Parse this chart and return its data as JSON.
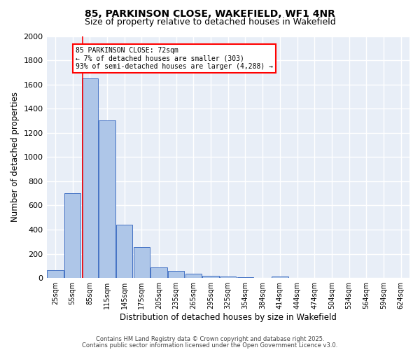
{
  "title1": "85, PARKINSON CLOSE, WAKEFIELD, WF1 4NR",
  "title2": "Size of property relative to detached houses in Wakefield",
  "xlabel": "Distribution of detached houses by size in Wakefield",
  "ylabel": "Number of detached properties",
  "bar_labels": [
    "25sqm",
    "55sqm",
    "85sqm",
    "115sqm",
    "145sqm",
    "175sqm",
    "205sqm",
    "235sqm",
    "265sqm",
    "295sqm",
    "325sqm",
    "354sqm",
    "384sqm",
    "414sqm",
    "444sqm",
    "474sqm",
    "504sqm",
    "534sqm",
    "564sqm",
    "594sqm",
    "624sqm"
  ],
  "bar_values": [
    65,
    700,
    1650,
    1300,
    440,
    255,
    90,
    57,
    35,
    20,
    10,
    5,
    0,
    15,
    3,
    0,
    0,
    0,
    0,
    0,
    3
  ],
  "bar_color": "#aec6e8",
  "bar_edge_color": "#4472c4",
  "background_color": "#e8eef7",
  "grid_color": "#ffffff",
  "ylim": [
    0,
    2000
  ],
  "yticks": [
    0,
    200,
    400,
    600,
    800,
    1000,
    1200,
    1400,
    1600,
    1800,
    2000
  ],
  "annotation_text": "85 PARKINSON CLOSE: 72sqm\n← 7% of detached houses are smaller (303)\n93% of semi-detached houses are larger (4,288) →",
  "annotation_box_color": "white",
  "annotation_box_edge": "red",
  "footer1": "Contains HM Land Registry data © Crown copyright and database right 2025.",
  "footer2": "Contains public sector information licensed under the Open Government Licence v3.0."
}
